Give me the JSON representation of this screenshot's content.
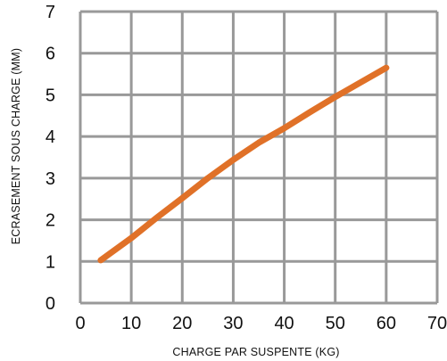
{
  "chart_data": {
    "type": "line",
    "title": "",
    "xlabel": "CHARGE PAR SUSPENTE (KG)",
    "ylabel": "ECRASEMENT SOUS CHARGE (MM)",
    "xlim": [
      0,
      70
    ],
    "ylim": [
      0,
      7
    ],
    "xticks": [
      "0",
      "10",
      "20",
      "30",
      "40",
      "50",
      "60",
      "70"
    ],
    "yticks": [
      "0",
      "1",
      "2",
      "3",
      "4",
      "5",
      "6",
      "7"
    ],
    "grid": true,
    "series": [
      {
        "color": "#e07128",
        "x": [
          4,
          10,
          15,
          20,
          25,
          30,
          35,
          40,
          45,
          50,
          55,
          60
        ],
        "y": [
          1.03,
          1.56,
          2.05,
          2.52,
          3.0,
          3.44,
          3.85,
          4.2,
          4.58,
          4.95,
          5.3,
          5.65
        ]
      }
    ]
  },
  "colors": {
    "grid": "#999999",
    "series": "#e07128",
    "text": "#111111"
  }
}
